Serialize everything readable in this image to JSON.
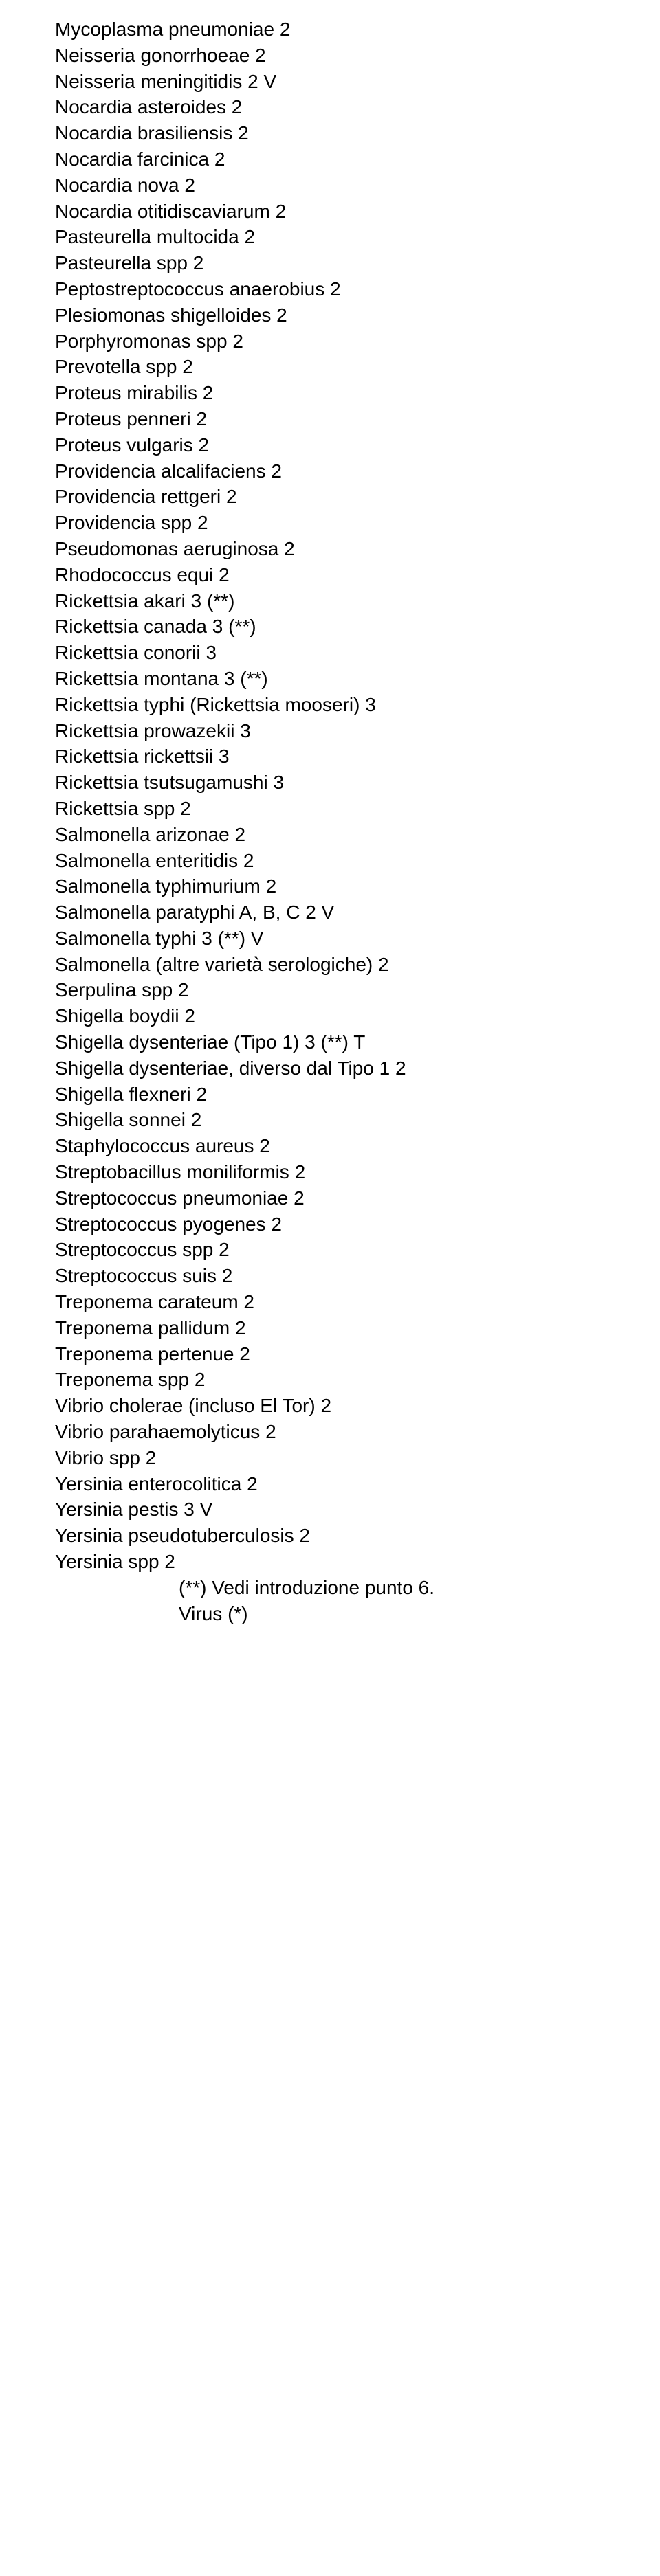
{
  "lines": [
    "Mycoplasma pneumoniae 2",
    "Neisseria gonorrhoeae 2",
    "Neisseria meningitidis 2 V",
    "Nocardia asteroides 2",
    "Nocardia brasiliensis 2",
    "Nocardia farcinica 2",
    "Nocardia nova 2",
    "Nocardia otitidiscaviarum 2",
    "Pasteurella multocida 2",
    "Pasteurella spp 2",
    "Peptostreptococcus anaerobius 2",
    "Plesiomonas shigelloides 2",
    "Porphyromonas spp 2",
    "Prevotella spp 2",
    "Proteus mirabilis 2",
    "Proteus penneri 2",
    "Proteus vulgaris 2",
    "Providencia alcalifaciens 2",
    "Providencia rettgeri 2",
    "Providencia spp 2",
    "Pseudomonas aeruginosa 2",
    "Rhodococcus equi 2",
    "Rickettsia akari 3 (**)",
    "Rickettsia canada 3 (**)",
    "Rickettsia conorii 3",
    "Rickettsia montana 3 (**)",
    "Rickettsia typhi (Rickettsia mooseri) 3",
    "Rickettsia prowazekii 3",
    "Rickettsia rickettsii 3",
    "Rickettsia tsutsugamushi 3",
    "Rickettsia spp 2",
    "Salmonella arizonae 2",
    "Salmonella enteritidis 2",
    "Salmonella typhimurium 2",
    "Salmonella paratyphi A, B, C 2 V",
    "Salmonella typhi 3 (**) V",
    "Salmonella (altre varietà serologiche) 2",
    "Serpulina spp 2",
    "Shigella boydii 2",
    "Shigella dysenteriae (Tipo 1) 3 (**) T",
    "Shigella dysenteriae, diverso dal Tipo 1 2",
    "Shigella flexneri 2",
    "Shigella sonnei 2",
    "Staphylococcus aureus 2",
    "Streptobacillus moniliformis 2",
    "Streptococcus pneumoniae 2",
    "Streptococcus pyogenes 2",
    "Streptococcus spp 2",
    "Streptococcus suis 2",
    "Treponema carateum 2",
    "Treponema pallidum 2",
    "Treponema pertenue 2",
    "Treponema spp 2",
    "Vibrio cholerae (incluso El Tor) 2",
    "Vibrio parahaemolyticus 2",
    "Vibrio spp 2",
    "Yersinia enterocolitica 2",
    "Yersinia pestis 3 V",
    "Yersinia pseudotuberculosis 2",
    "Yersinia spp 2"
  ],
  "footnotes": [
    "(**) Vedi introduzione punto 6.",
    "Virus (*)"
  ]
}
